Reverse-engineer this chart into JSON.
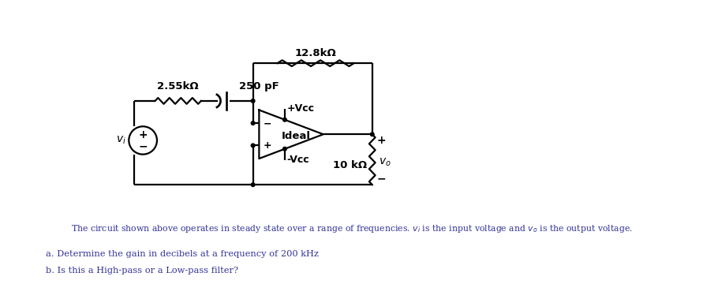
{
  "bg_color": "#ffffff",
  "line_color": "#000000",
  "circuit": {
    "resistor1_label": "2.55kΩ",
    "capacitor_label": "250 pF",
    "resistor2_label": "12.8kΩ",
    "resistor3_label": "10 kΩ",
    "opamp_label": "Ideal",
    "vcc_pos": "+Vcc",
    "vcc_neg": "-Vcc",
    "vi_label": "v",
    "vi_sub": "i",
    "vo_label": "v",
    "vo_sub": "o",
    "plus_label": "+",
    "minus_label": "-"
  },
  "text_line1": "The circuit shown above operates in steady state over a range of frequencies. v",
  "text_line1_i": "i",
  "text_line1_mid": " is the input voltage and v",
  "text_line1_o": "o",
  "text_line1_end": " is the output voltage.",
  "text_line2a": "a. Determine the gain in decibels at a frequency of 200 kHz",
  "text_line2b": "b. Is this a High-pass or a Low-pass filter?",
  "text_color_blue": "#cc0000",
  "text_color_dark": "#333399"
}
